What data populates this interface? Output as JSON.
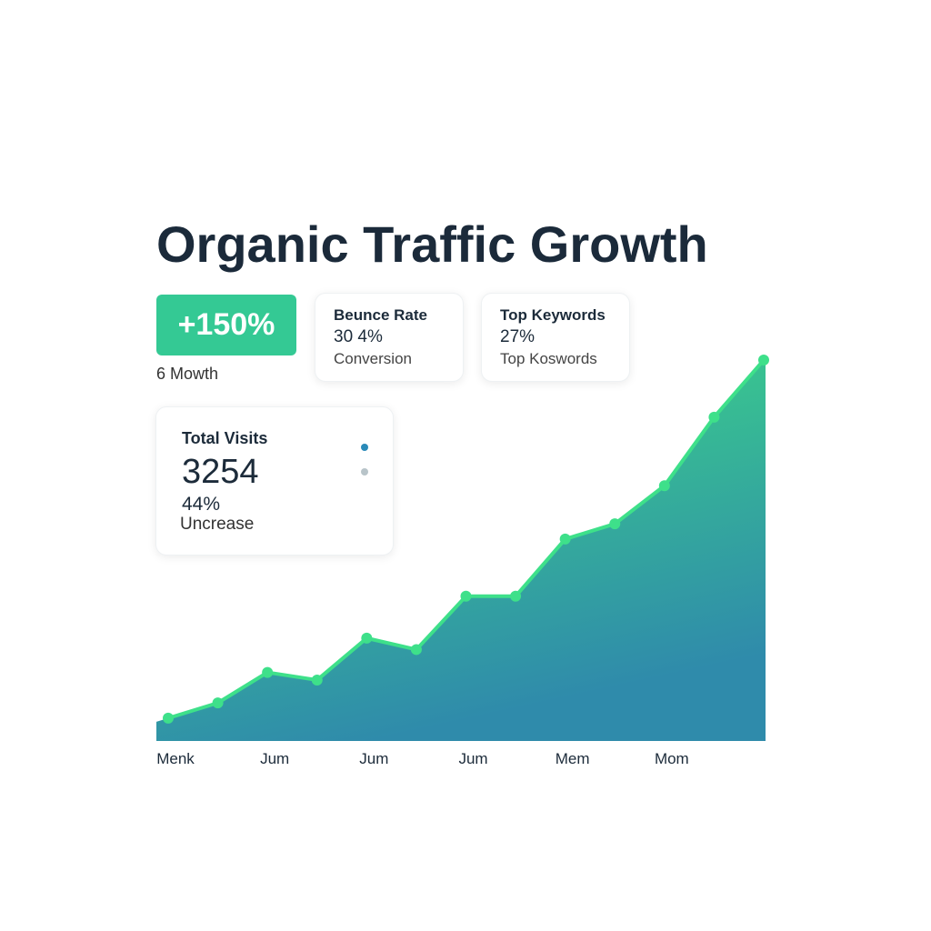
{
  "header": {
    "title": "Organic Traffic Growth"
  },
  "cards": {
    "growth": {
      "value": "+150%",
      "caption": "6 Mowth"
    },
    "bounce": {
      "title": "Beunce Rate",
      "value": "30 4%",
      "caption": "Conversion"
    },
    "keywords": {
      "title": "Top Keywords",
      "value": "27%",
      "caption": "Top Koswords"
    },
    "visits": {
      "title": "Total Visits",
      "value": "3254",
      "percent": "44%",
      "caption": "Uncrease"
    }
  },
  "chart_data": {
    "type": "area",
    "categories": [
      "Menk",
      null,
      "Jum",
      null,
      "Jum",
      null,
      "Jum",
      null,
      "Mem",
      null,
      "Mom",
      null,
      null
    ],
    "values": [
      6,
      10,
      18,
      16,
      27,
      24,
      38,
      38,
      53,
      57,
      67,
      85,
      100
    ],
    "ylim": [
      0,
      100
    ],
    "color": "#3ee08a",
    "fill_colors": [
      "#3ddc84",
      "#2f8bab"
    ]
  }
}
